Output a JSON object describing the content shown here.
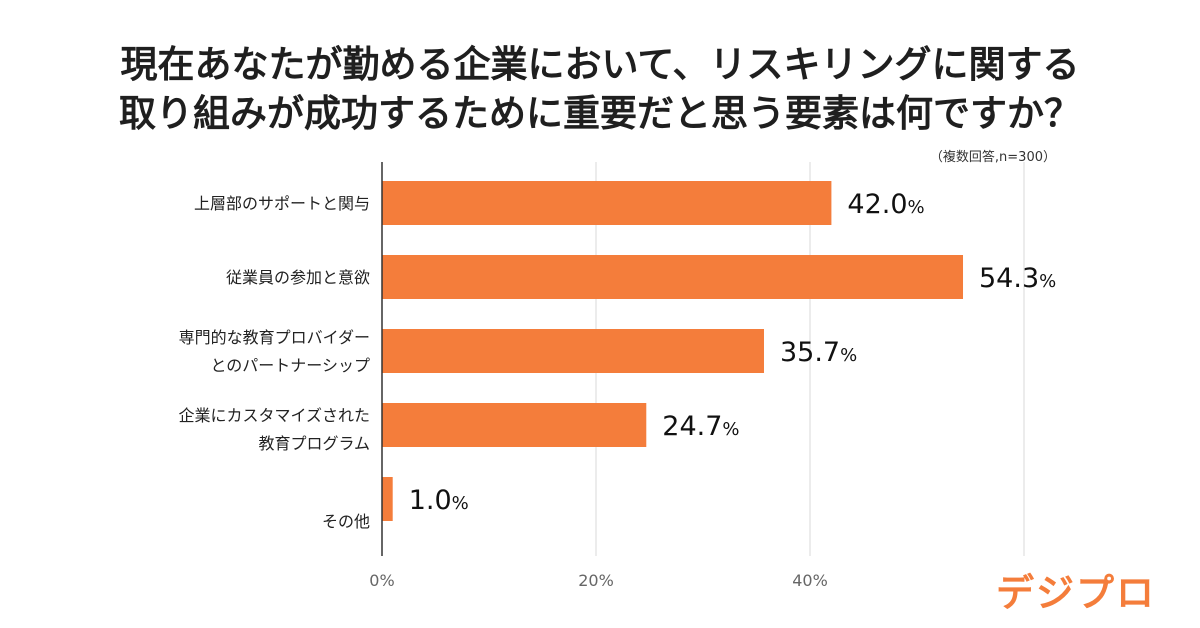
{
  "chart_data": {
    "type": "bar",
    "orientation": "horizontal",
    "title_lines": [
      "現在あなたが勤める企業において、リスキリングに関する",
      "取り組みが成功するために重要だと思う要素は何ですか？"
    ],
    "note": "（複数回答,n=300）",
    "categories": [
      [
        "上層部のサポートと関与"
      ],
      [
        "従業員の参加と意欲"
      ],
      [
        "専門的な教育プロバイダー",
        "とのパートナーシップ"
      ],
      [
        "企業にカスタマイズされた",
        "教育プログラム"
      ],
      [
        "その他"
      ]
    ],
    "values": [
      42.0,
      54.3,
      35.7,
      24.7,
      1.0
    ],
    "value_labels": [
      {
        "num": "42.0",
        "unit": "%"
      },
      {
        "num": "54.3",
        "unit": "%"
      },
      {
        "num": "35.7",
        "unit": "%"
      },
      {
        "num": "24.7",
        "unit": "%"
      },
      {
        "num": "1.0",
        "unit": "%"
      }
    ],
    "x_ticks": [
      {
        "value": 0,
        "label": "0%"
      },
      {
        "value": 20,
        "label": "20%"
      },
      {
        "value": 40,
        "label": "40%"
      }
    ],
    "xlim": [
      0,
      60
    ],
    "grid": true,
    "bar_color": "#f47d3b"
  },
  "brand": {
    "logo_text": "デジプロ",
    "color": "#f47d3b"
  }
}
